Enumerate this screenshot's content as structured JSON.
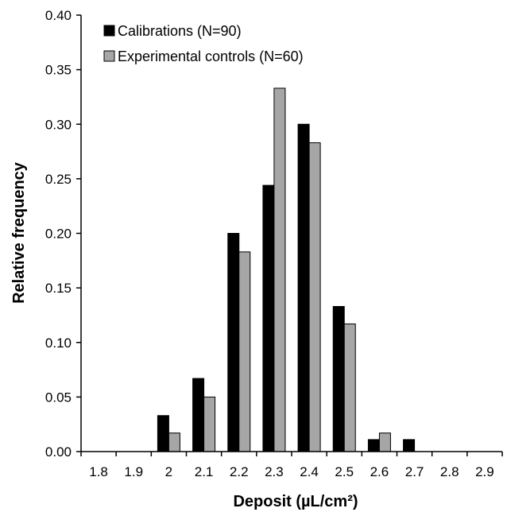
{
  "chart_data": {
    "type": "bar",
    "categories": [
      "1.8",
      "1.9",
      "2",
      "2.1",
      "2.2",
      "2.3",
      "2.4",
      "2.5",
      "2.6",
      "2.7",
      "2.8",
      "2.9"
    ],
    "series": [
      {
        "name": "Calibrations (N=90)",
        "color": "#000000",
        "values": [
          0,
          0,
          0.033,
          0.067,
          0.2,
          0.244,
          0.3,
          0.133,
          0.011,
          0.011,
          0,
          0
        ]
      },
      {
        "name": "Experimental controls (N=60)",
        "color": "#a6a6a6",
        "values": [
          0,
          0,
          0.017,
          0.05,
          0.183,
          0.333,
          0.283,
          0.117,
          0.017,
          0,
          0,
          0
        ]
      }
    ],
    "xlabel": "Deposit (µL/cm²)",
    "ylabel": "Relative frequency",
    "ylim": [
      0,
      0.4
    ],
    "yticks": [
      "0.00",
      "0.05",
      "0.10",
      "0.15",
      "0.20",
      "0.25",
      "0.30",
      "0.35",
      "0.40"
    ],
    "grid": false,
    "legend_position": "top-left"
  }
}
